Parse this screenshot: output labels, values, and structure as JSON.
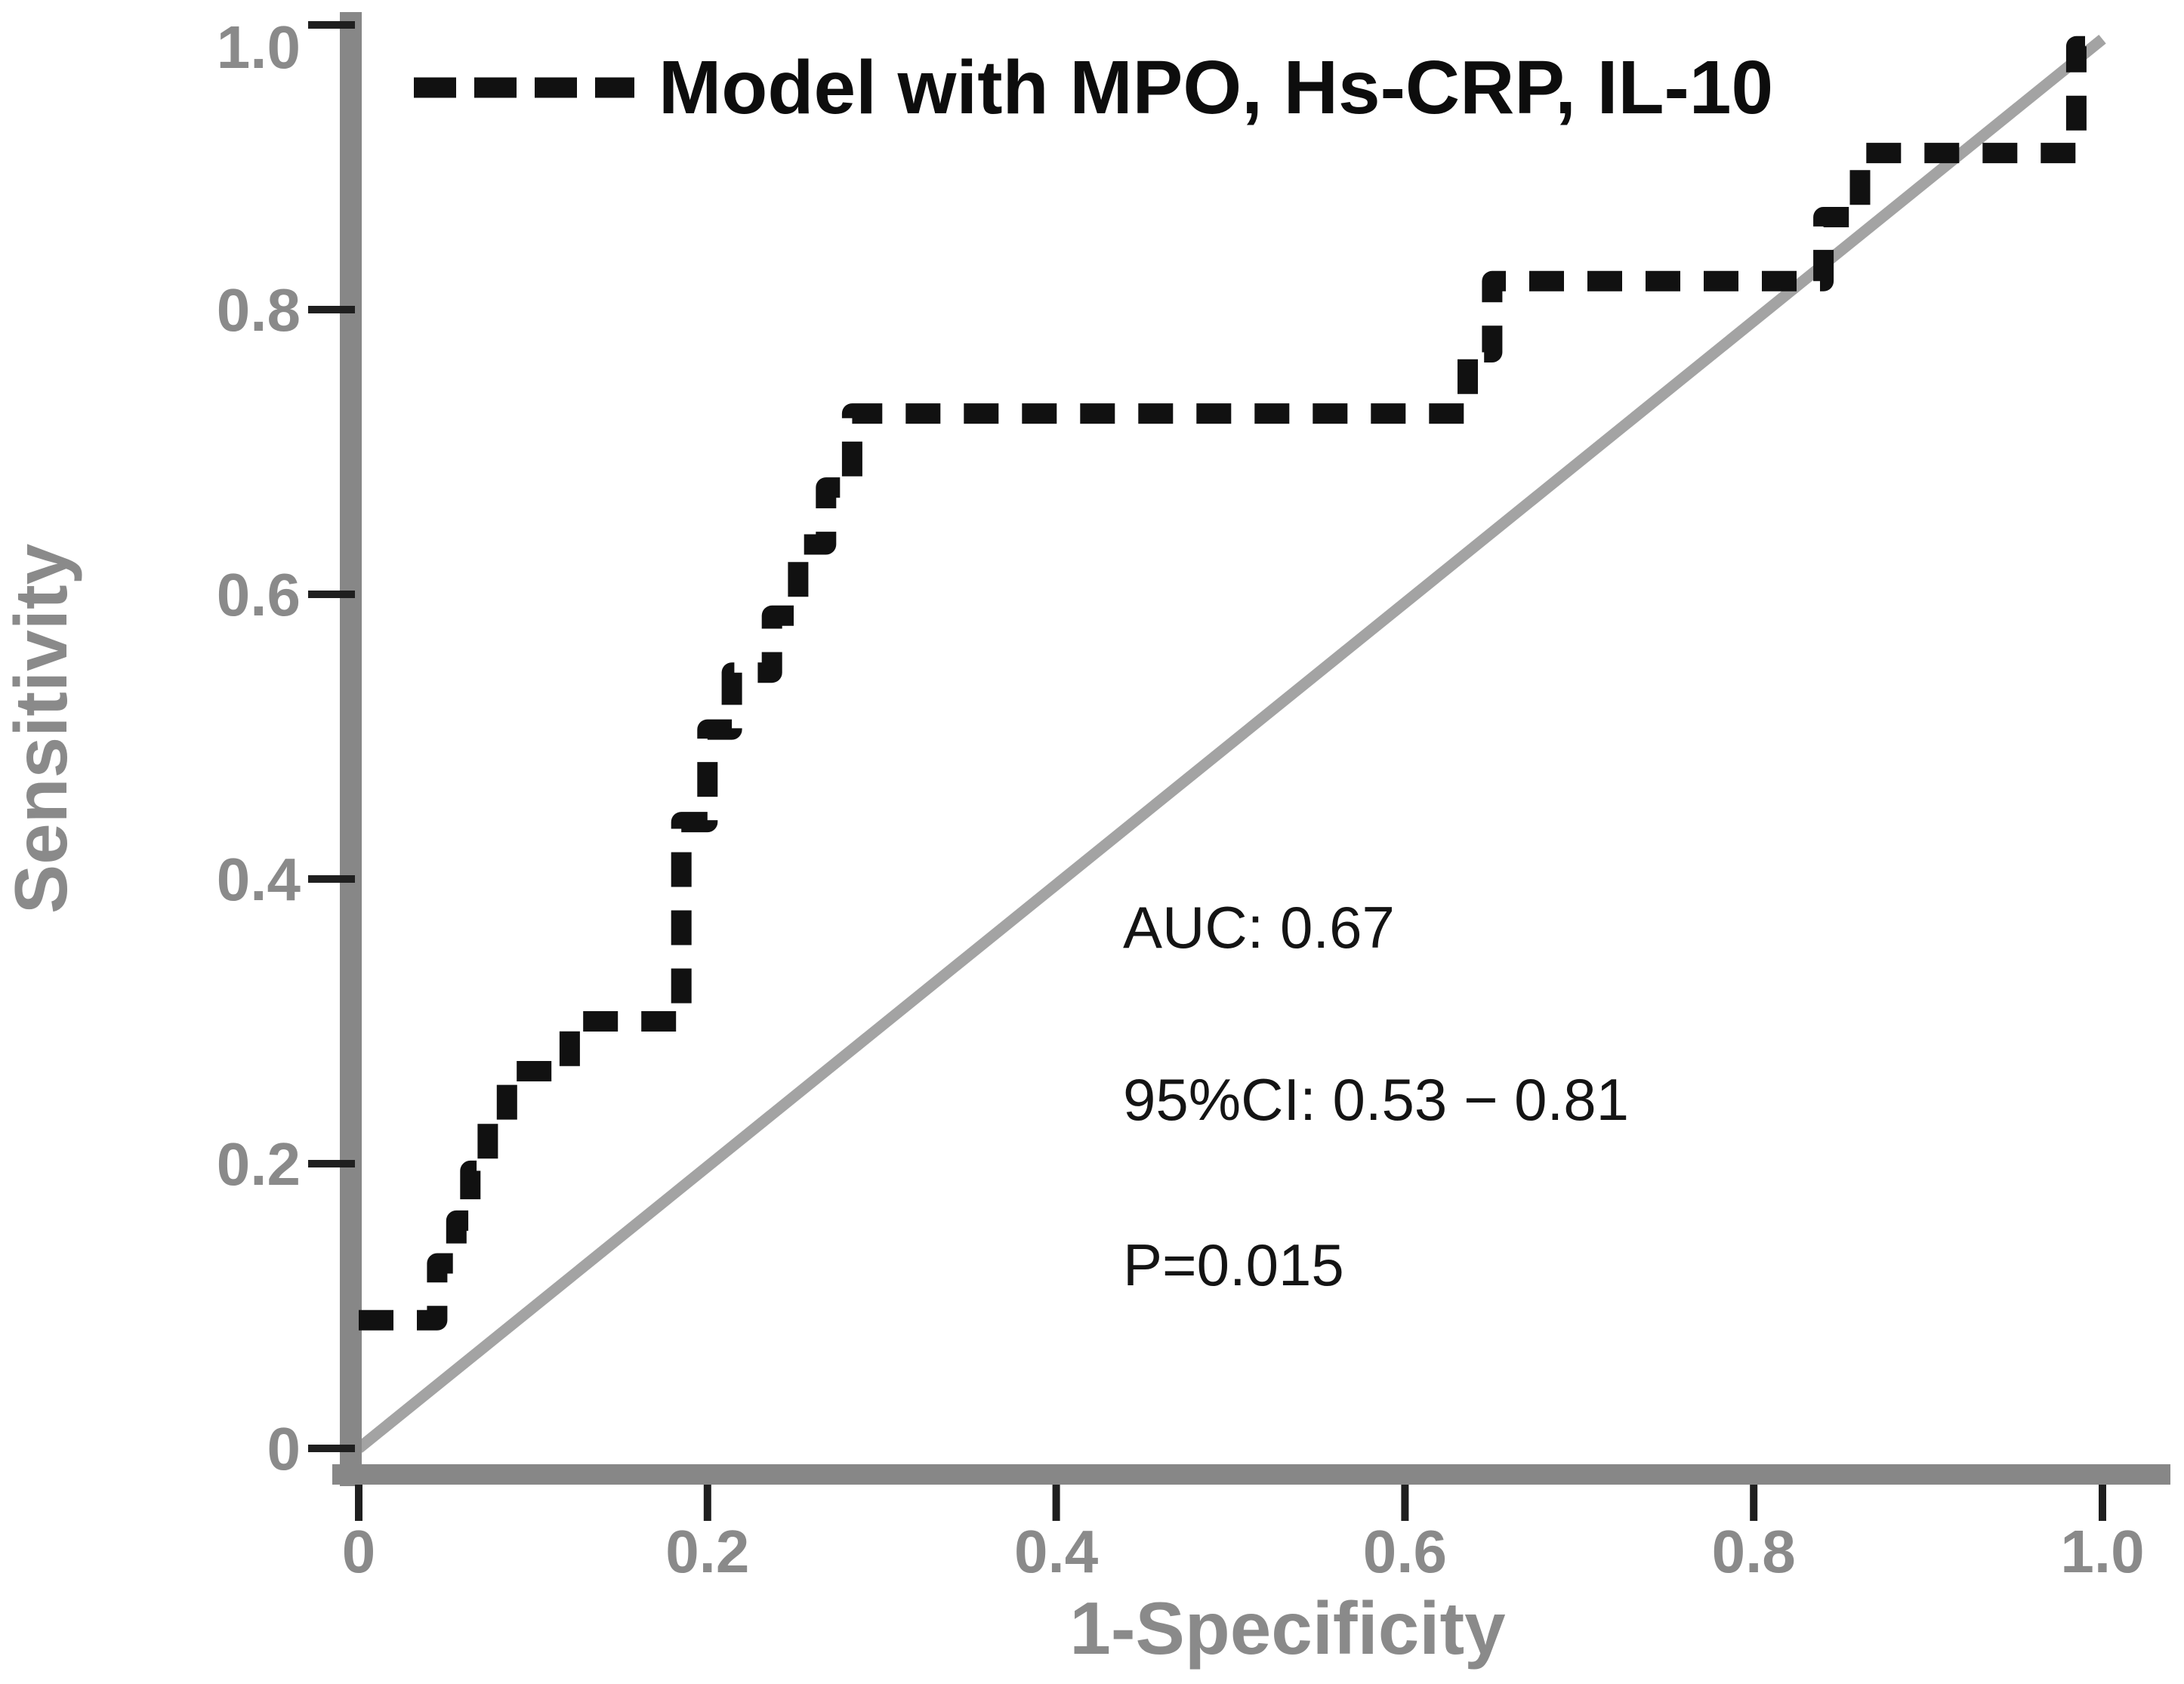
{
  "figure": {
    "kind": "roc-curve-figure",
    "background_color": "#ffffff"
  },
  "legend": {
    "series_label": "Model with MPO, Hs-CRP, IL-10"
  },
  "annotations": {
    "auc_text": "AUC: 0.67",
    "ci_text": "95%CI: 0.53 − 0.81",
    "p_text": "P=0.015"
  },
  "axes": {
    "x_label": "1-Specificity",
    "y_label": "Sensitivity",
    "x_tick_labels": [
      "0",
      "0.2",
      "0.4",
      "0.6",
      "0.8",
      "1.0"
    ],
    "y_tick_labels": [
      "0",
      "0.2",
      "0.4",
      "0.6",
      "0.8",
      "1.0"
    ]
  },
  "colors": {
    "curve": "#111111",
    "axis_bar": "#878787",
    "diagonal": "#a3a3a3",
    "tick_mark": "#1f1f1f",
    "axis_text": "#8a8a8a",
    "annotation_text": "#141414"
  },
  "chart_data": {
    "type": "line",
    "title": "",
    "xlabel": "1-Specificity",
    "ylabel": "Sensitivity",
    "xlim": [
      0,
      1
    ],
    "ylim": [
      0,
      1
    ],
    "grid": false,
    "legend_position": "top-left-inside",
    "x_ticks": [
      0,
      0.2,
      0.4,
      0.6,
      0.8,
      1.0
    ],
    "y_ticks": [
      0,
      0.2,
      0.4,
      0.6,
      0.8,
      1.0
    ],
    "series": [
      {
        "name": "Model with MPO, Hs-CRP, IL-10",
        "style": "dashed",
        "color": "#111111",
        "points": [
          [
            0.0,
            0.09
          ],
          [
            0.045,
            0.09
          ],
          [
            0.045,
            0.13
          ],
          [
            0.056,
            0.13
          ],
          [
            0.056,
            0.16
          ],
          [
            0.064,
            0.16
          ],
          [
            0.064,
            0.195
          ],
          [
            0.074,
            0.195
          ],
          [
            0.074,
            0.23
          ],
          [
            0.085,
            0.23
          ],
          [
            0.085,
            0.265
          ],
          [
            0.121,
            0.265
          ],
          [
            0.121,
            0.3
          ],
          [
            0.185,
            0.3
          ],
          [
            0.185,
            0.44
          ],
          [
            0.2,
            0.44
          ],
          [
            0.2,
            0.505
          ],
          [
            0.214,
            0.505
          ],
          [
            0.214,
            0.545
          ],
          [
            0.237,
            0.545
          ],
          [
            0.237,
            0.585
          ],
          [
            0.252,
            0.585
          ],
          [
            0.252,
            0.635
          ],
          [
            0.268,
            0.635
          ],
          [
            0.268,
            0.675
          ],
          [
            0.283,
            0.675
          ],
          [
            0.283,
            0.727
          ],
          [
            0.636,
            0.727
          ],
          [
            0.636,
            0.77
          ],
          [
            0.65,
            0.77
          ],
          [
            0.65,
            0.82
          ],
          [
            0.84,
            0.82
          ],
          [
            0.84,
            0.865
          ],
          [
            0.861,
            0.865
          ],
          [
            0.861,
            0.91
          ],
          [
            0.985,
            0.91
          ],
          [
            0.985,
            0.985
          ],
          [
            1.0,
            0.985
          ]
        ]
      },
      {
        "name": "reference-diagonal",
        "style": "solid",
        "color": "#a3a3a3",
        "points": [
          [
            0,
            0
          ],
          [
            1.0,
            0.99
          ]
        ]
      }
    ],
    "stats": {
      "auc": 0.67,
      "ci_95": [
        0.53,
        0.81
      ],
      "p_value": 0.015
    }
  }
}
